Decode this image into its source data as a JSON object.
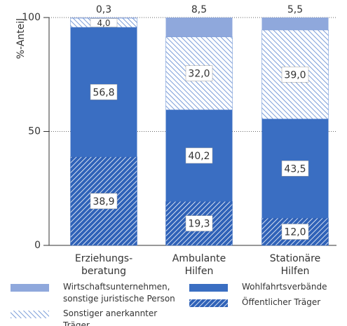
{
  "chart_data": {
    "type": "stacked-bar",
    "y_label": "%-Anteil",
    "categories": [
      "Erziehungs-\nberatung",
      "Ambulante\nHilfen",
      "Stationäre\nHilfen"
    ],
    "ylim": [
      0,
      100
    ],
    "yticks": [
      0,
      50,
      100
    ],
    "grid": true,
    "series": [
      {
        "name": "Öffentlicher Träger",
        "color": "#2f62b8",
        "hatch": true,
        "values": [
          38.9,
          19.3,
          12.0
        ],
        "value_labels": [
          "38,9",
          "19,3",
          "12,0"
        ]
      },
      {
        "name": "Wohlfahrtsverbände",
        "color": "#3a6ec2",
        "hatch": false,
        "values": [
          56.8,
          40.2,
          43.5
        ],
        "value_labels": [
          "56,8",
          "40,2",
          "43,5"
        ]
      },
      {
        "name": "Sonstiger anerkannter Träger",
        "color": "#5a85cf",
        "hatch": true,
        "values": [
          4.0,
          32.0,
          39.0
        ],
        "value_labels": [
          "4,0",
          "32,0",
          "39,0"
        ]
      },
      {
        "name": "Wirtschaftsunternehmen, sonstige juristische Person",
        "color": "#8fa8dc",
        "hatch": false,
        "values": [
          0.3,
          8.5,
          5.5
        ],
        "value_labels": [
          "0,3",
          "8,5",
          "5,5"
        ]
      }
    ]
  }
}
